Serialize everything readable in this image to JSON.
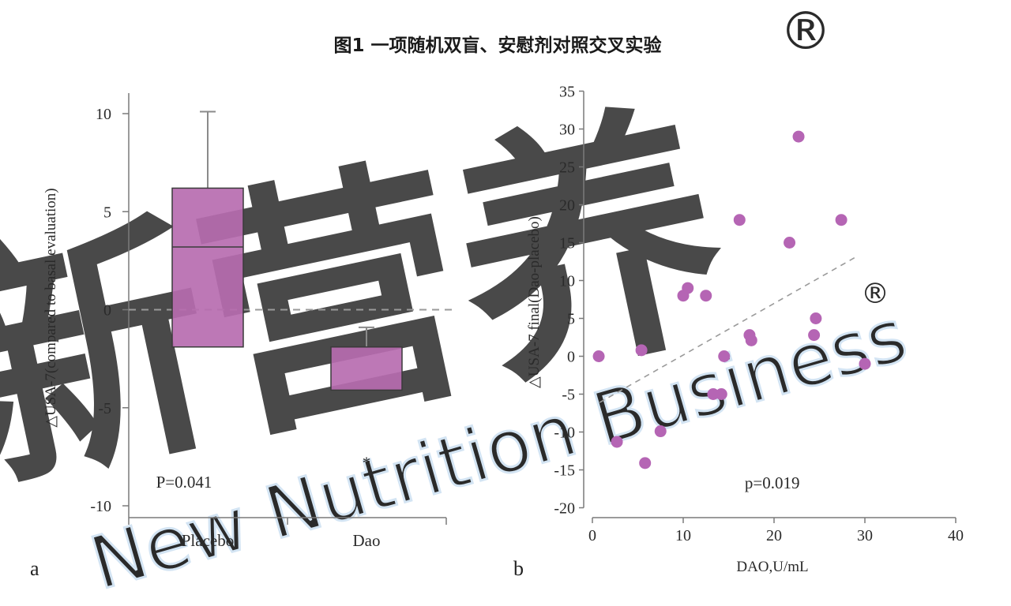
{
  "figure": {
    "title": "图1 一项随机双盲、安慰剂对照交叉实验",
    "panel_a_letter": "a",
    "panel_b_letter": "b",
    "watermark": {
      "main": "新营养",
      "sub": "New Nutrition Business",
      "registered": "®"
    }
  },
  "colors": {
    "fill": "#b76cb0",
    "edge": "#3a3a3a",
    "point": "#b565b4",
    "axis": "#7a7a7a",
    "dash": "#9a9a9a",
    "watermark": "#dbe9f6"
  },
  "chart_data": [
    {
      "type": "box",
      "title": "",
      "ylabel": "△USA-7(compared to basal evaluation)",
      "xlabel": "",
      "ylim": [
        -10,
        11
      ],
      "yticks": [
        -10,
        -5,
        0,
        5,
        10
      ],
      "ytick_labels": [
        "-10",
        "-5",
        "0",
        "5",
        "10"
      ],
      "categories": [
        "Placebo",
        "Dao"
      ],
      "boxes": [
        {
          "category": "Placebo",
          "q1": -1.9,
          "median": 3.2,
          "q3": 6.2,
          "whisker_high": 10.1
        },
        {
          "category": "Dao",
          "q1": -4.1,
          "median": -1.9,
          "q3": -1.9,
          "whisker_high": -0.9
        }
      ],
      "reference_line": {
        "y": 0,
        "style": "dashed"
      },
      "annotations": [
        {
          "text": "P=0.041",
          "category": "Placebo",
          "y": -8.8
        },
        {
          "text": "*",
          "category": "Dao",
          "y": -7.6
        }
      ],
      "grid": false,
      "legend": "none"
    },
    {
      "type": "scatter",
      "title": "",
      "xlabel": "DAO,U/mL",
      "ylabel": "△USA-7 final(Dao-placebo)",
      "xlim": [
        0,
        40
      ],
      "ylim": [
        -20,
        35
      ],
      "xticks": [
        0,
        10,
        20,
        30,
        40
      ],
      "xtick_labels": [
        "0",
        "10",
        "20",
        "30",
        "40"
      ],
      "yticks": [
        -20,
        -15,
        -10,
        -5,
        0,
        5,
        10,
        15,
        20,
        25,
        30,
        35
      ],
      "ytick_labels": [
        "-20",
        "-15",
        "-10",
        "-5",
        "0",
        "5",
        "10",
        "15",
        "20",
        "25",
        "30",
        "35"
      ],
      "x": [
        0.7,
        2.7,
        5.4,
        5.8,
        7.5,
        10.0,
        10.5,
        12.5,
        13.3,
        14.2,
        14.5,
        16.2,
        17.3,
        17.5,
        21.7,
        22.7,
        24.4,
        24.6,
        27.4,
        30.0
      ],
      "y": [
        0,
        -11.3,
        0.8,
        -14.1,
        -9.9,
        8,
        9,
        8,
        -5,
        -5,
        0,
        18,
        2.8,
        2.1,
        15,
        29,
        2.8,
        5,
        18,
        -1
      ],
      "trendline": {
        "style": "dashed",
        "x": [
          0.8,
          29
        ],
        "y": [
          -6.1,
          13.1
        ]
      },
      "annotations": [
        {
          "text": "p=0.019",
          "x": 19.8,
          "y": -16.7
        }
      ],
      "grid": false,
      "legend": "none"
    }
  ]
}
